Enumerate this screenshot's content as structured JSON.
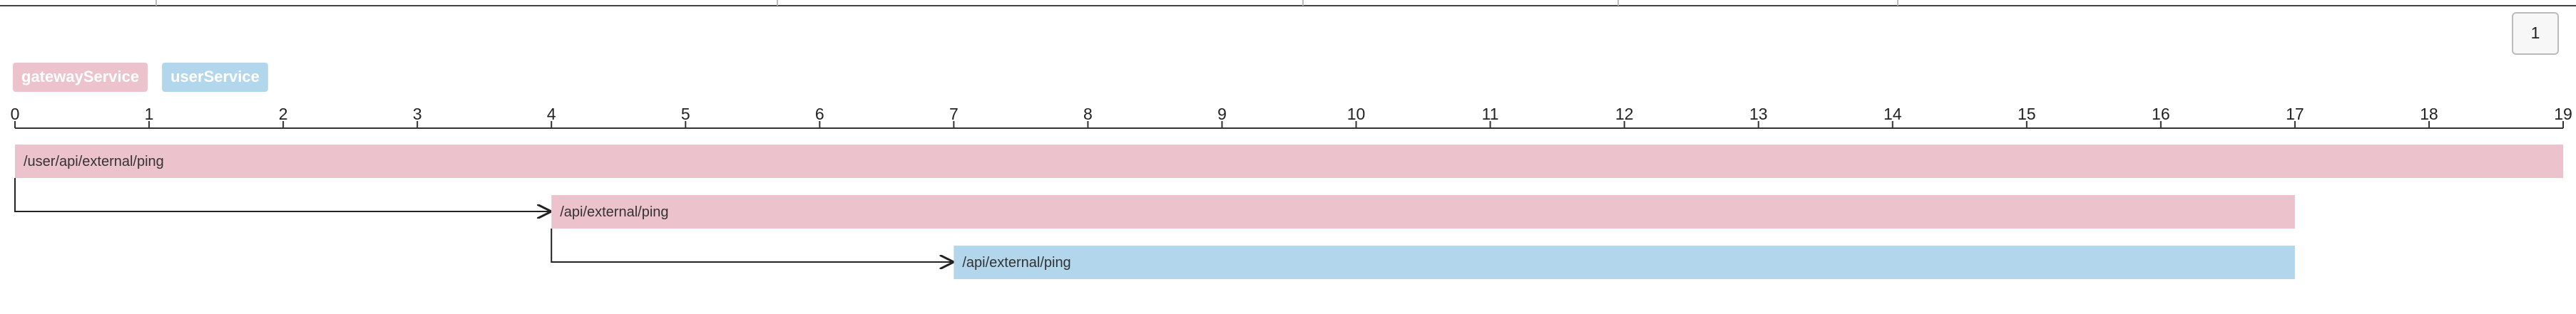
{
  "pager": {
    "label": "1"
  },
  "chart_data": {
    "type": "gantt",
    "series": [
      {
        "name": "gatewayService",
        "color": "#ecc3cc"
      },
      {
        "name": "userService",
        "color": "#b2d6ec"
      }
    ],
    "xlim": [
      0,
      19
    ],
    "xticks": [
      0,
      1,
      2,
      3,
      4,
      5,
      6,
      7,
      8,
      9,
      10,
      11,
      12,
      13,
      14,
      15,
      16,
      17,
      18,
      19
    ],
    "spans": [
      {
        "label": "/user/api/external/ping",
        "start": 0,
        "end": 19,
        "color": "#ecc3cc"
      },
      {
        "label": "/api/external/ping",
        "start": 4,
        "end": 17,
        "color": "#ecc3cc"
      },
      {
        "label": "/api/external/ping",
        "start": 7,
        "end": 17,
        "color": "#b2d6ec"
      }
    ]
  }
}
